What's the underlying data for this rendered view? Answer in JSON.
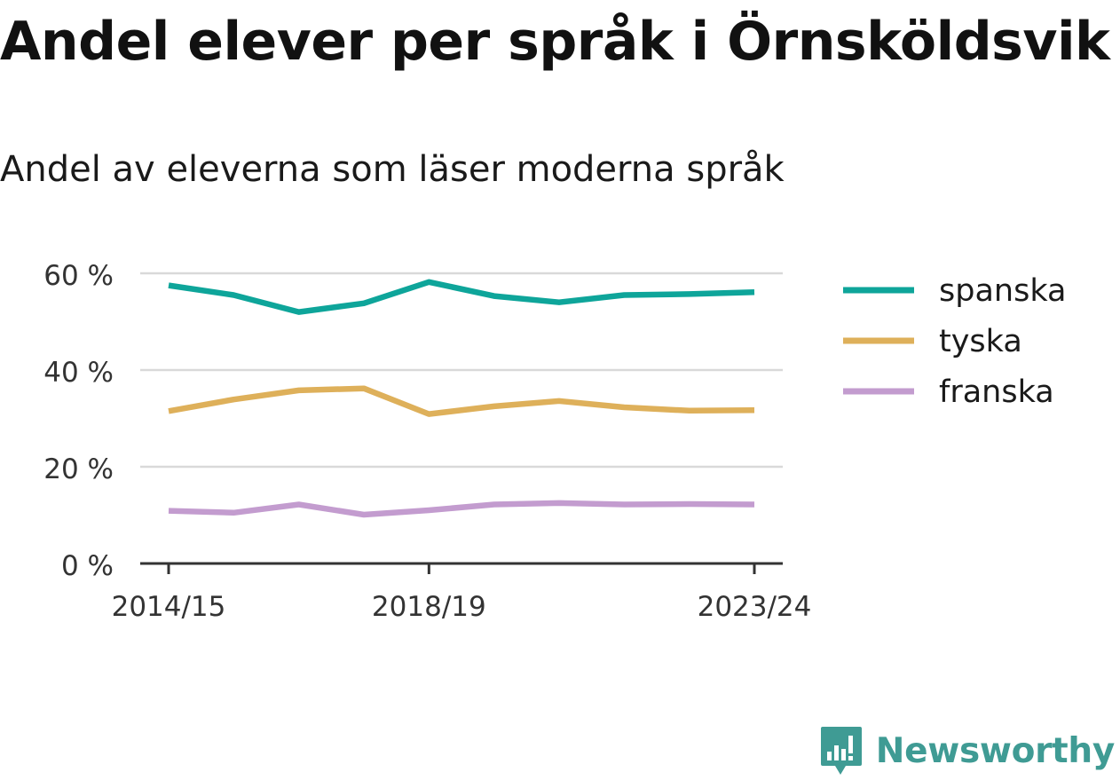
{
  "title": "Andel elever per språk i Örnsköldsvik",
  "subtitle": "Andel av eleverna som läser moderna språk",
  "brand": {
    "name": "Newsworthy",
    "color": "#3f9b94"
  },
  "chart_data": {
    "type": "line",
    "x": [
      "2014/15",
      "2015/16",
      "2016/17",
      "2017/18",
      "2018/19",
      "2019/20",
      "2020/21",
      "2021/22",
      "2022/23",
      "2023/24"
    ],
    "x_tick_labels": [
      "2014/15",
      "2018/19",
      "2023/24"
    ],
    "y_ticks": [
      0,
      20,
      40,
      60
    ],
    "y_tick_labels": [
      "0 %",
      "20 %",
      "40 %",
      "60 %"
    ],
    "ylim": [
      0,
      60
    ],
    "grid": true,
    "legend_position": "right",
    "series": [
      {
        "name": "spanska",
        "color": "#0ea59a",
        "values": [
          57.5,
          55.5,
          52.0,
          53.8,
          58.2,
          55.3,
          54.0,
          55.5,
          55.7,
          56.1
        ]
      },
      {
        "name": "tyska",
        "color": "#deb05a",
        "values": [
          31.5,
          33.9,
          35.8,
          36.2,
          30.9,
          32.5,
          33.6,
          32.3,
          31.6,
          31.7
        ]
      },
      {
        "name": "franska",
        "color": "#c39ccf",
        "values": [
          10.9,
          10.5,
          12.2,
          10.1,
          11.0,
          12.2,
          12.5,
          12.2,
          12.3,
          12.2
        ]
      }
    ]
  }
}
